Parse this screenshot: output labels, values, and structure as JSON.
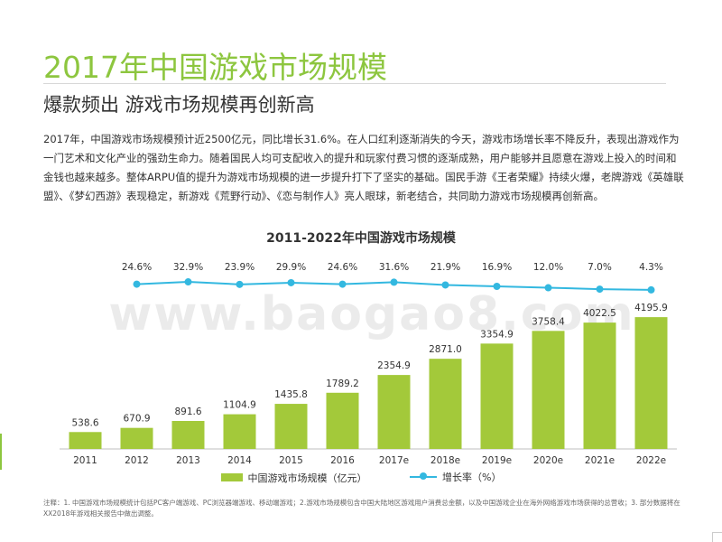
{
  "page": {
    "title": "2017年中国游戏市场规模",
    "subtitle": "爆款频出 游戏市场规模再创新高",
    "body": "2017年，中国游戏市场规模预计近2500亿元，同比增长31.6%。在人口红利逐渐消失的今天，游戏市场增长率不降反升，表现出游戏作为一门艺术和文化产业的强劲生命力。随着国民人均可支配收入的提升和玩家付费习惯的逐渐成熟，用户能够并且愿意在游戏上投入的时间和金钱也越来越多。整体ARPU值的提升为游戏市场规模的进一步提升打下了坚实的基础。国民手游《王者荣耀》持续火爆，老牌游戏《英雄联盟》、《梦幻西游》表现稳定，新游戏《荒野行动》、《恋与制作人》亮人眼球，新老结合，共同助力游戏市场规模再创新高。",
    "note": "注释：1. 中国游戏市场规模统计包括PC客户端游戏、PC浏览器端游戏、移动端游戏；2.游戏市场规模包含中国大陆地区游戏用户消费总金额，以及中国游戏企业在海外网络游戏市场获得的总营收；3. 部分数据将在XX2018年游戏相关报告中做出调整。",
    "watermark": "www.baogao8.com"
  },
  "colors": {
    "title": "#8dc63f",
    "bar": "#a3c93a",
    "line": "#33b8e0"
  },
  "chart_data": {
    "type": "bar",
    "title": "2011-2022年中国游戏市场规模",
    "categories": [
      "2011",
      "2012",
      "2013",
      "2014",
      "2015",
      "2016",
      "2017e",
      "2018e",
      "2019e",
      "2020e",
      "2021e",
      "2022e"
    ],
    "series": [
      {
        "name": "中国游戏市场规模（亿元）",
        "type": "bar",
        "values": [
          538.6,
          670.9,
          891.6,
          1104.9,
          1435.8,
          1789.2,
          2354.9,
          2871.0,
          3354.9,
          3758.4,
          4022.5,
          4195.9
        ],
        "labels": [
          "538.6",
          "670.9",
          "891.6",
          "1104.9",
          "1435.8",
          "1789.2",
          "2354.9",
          "2871.0",
          "3354.9",
          "3758.4",
          "4022.5",
          "4195.9"
        ]
      },
      {
        "name": "增长率（%）",
        "type": "line",
        "values": [
          null,
          24.6,
          32.9,
          23.9,
          29.9,
          24.6,
          31.6,
          21.9,
          16.9,
          12.0,
          7.0,
          4.3
        ],
        "labels": [
          null,
          "24.6%",
          "32.9%",
          "23.9%",
          "29.9%",
          "24.6%",
          "31.6%",
          "21.9%",
          "16.9%",
          "12.0%",
          "7.0%",
          "4.3%"
        ]
      }
    ],
    "ylim_bar": [
      0,
      4400
    ],
    "legend": "bottom",
    "grid": false
  }
}
